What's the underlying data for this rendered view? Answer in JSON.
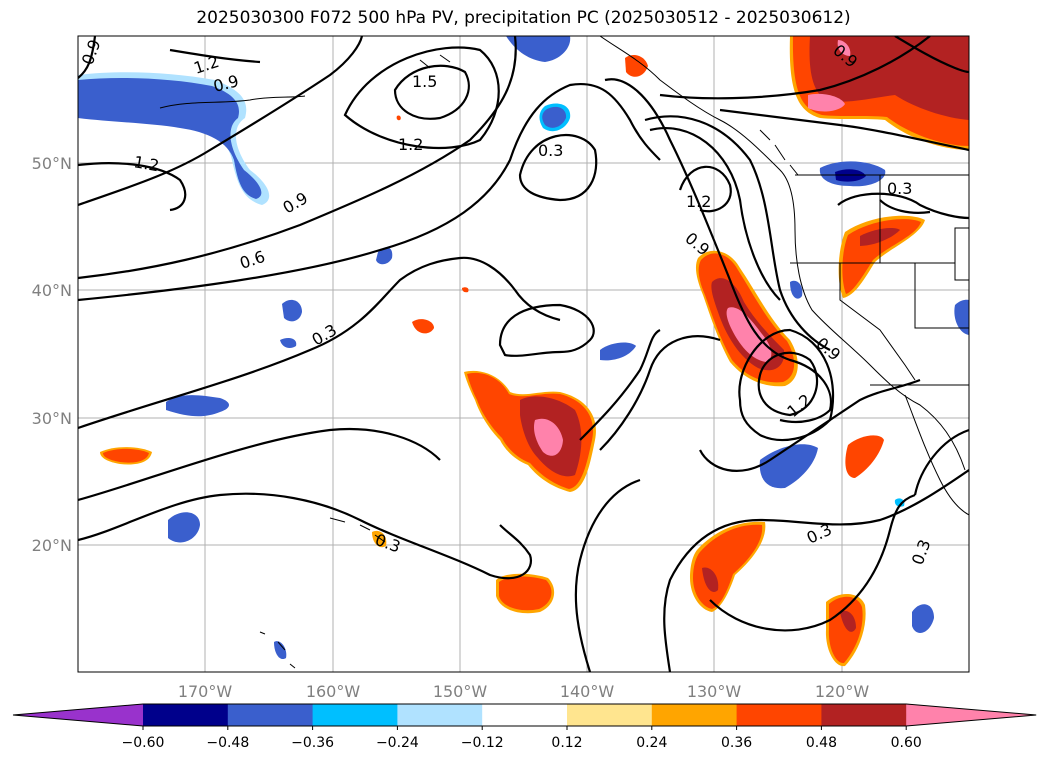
{
  "title": "2025030300 F072 500 hPa PV, precipitation PC (2025030512 - 2025030612)",
  "lat_labels": [
    "50°N",
    "40°N",
    "30°N",
    "20°N"
  ],
  "lon_labels": [
    "170°W",
    "160°W",
    "150°W",
    "140°W",
    "130°W",
    "120°W"
  ],
  "contour_labels": [
    "0.9",
    "1.2",
    "0.9",
    "1.5",
    "1.2",
    "1.2",
    "0.9",
    "0.6",
    "0.3",
    "0.3",
    "1.2",
    "0.9",
    "0.9",
    "1.2",
    "0.3",
    "0.3",
    "0.3",
    "0.9",
    "0.3"
  ],
  "colorbar": {
    "ticks": [
      "−0.60",
      "−0.48",
      "−0.36",
      "−0.24",
      "−0.12",
      "0.12",
      "0.24",
      "0.36",
      "0.48",
      "0.60"
    ],
    "colors": [
      "#9932cc",
      "#00008b",
      "#3a5fcd",
      "#00bfff",
      "#b0e2ff",
      "#ffffff",
      "#ffe58f",
      "#ffa500",
      "#ff4500",
      "#b22222",
      "#ff82ab"
    ]
  }
}
